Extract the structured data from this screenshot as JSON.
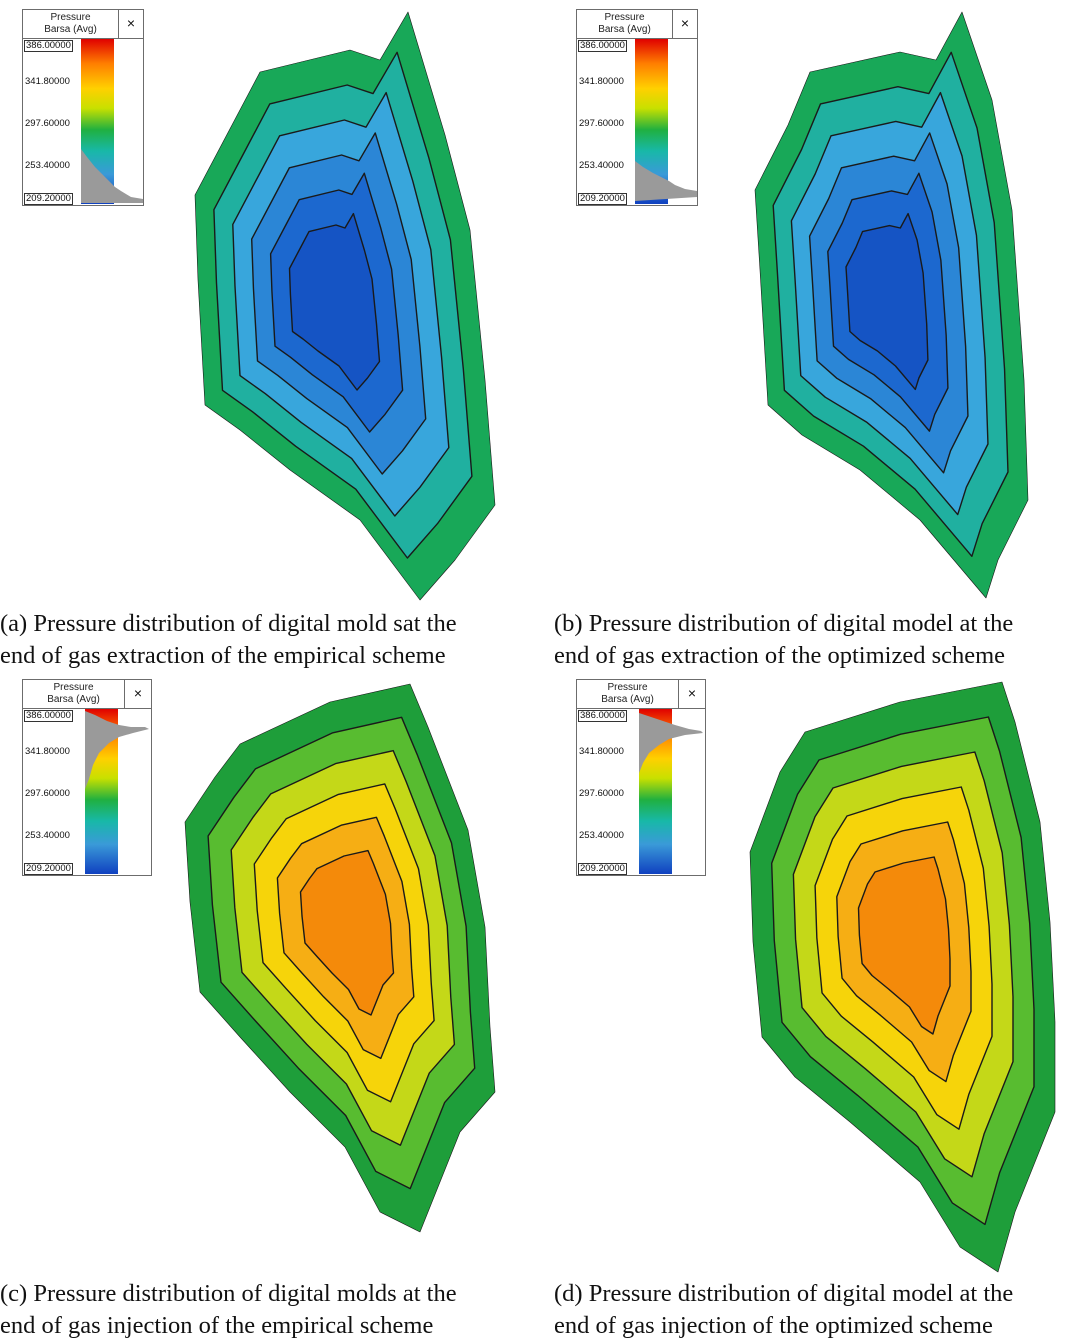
{
  "legend": {
    "title_line1": "Pressure",
    "title_line2": "Barsa (Avg)",
    "close_glyph": "×",
    "ticks": [
      "386.00000",
      "341.80000",
      "297.60000",
      "253.40000",
      "209.20000"
    ]
  },
  "panels": [
    {
      "id": "a",
      "caption_line1": "(a) Pressure distribution of digital mold sat the",
      "caption_line2": "end of gas extraction of the empirical scheme",
      "palette": "extraction"
    },
    {
      "id": "b",
      "caption_line1": "(b) Pressure distribution of digital model at the",
      "caption_line2": "end of gas extraction of the optimized scheme",
      "palette": "extraction"
    },
    {
      "id": "c",
      "caption_line1": "(c) Pressure distribution of digital molds at the",
      "caption_line2": "end of gas injection of the empirical scheme",
      "palette": "injection"
    },
    {
      "id": "d",
      "caption_line1": "(d) Pressure distribution of digital model at the",
      "caption_line2": "end of gas injection of the optimized scheme",
      "palette": "injection"
    }
  ],
  "colors": {
    "extraction": [
      "#18a858",
      "#20b0a0",
      "#38a6dc",
      "#2b86d6",
      "#1c68cf",
      "#1554c4"
    ],
    "injection": [
      "#1e9e3a",
      "#58bc30",
      "#c4d818",
      "#f6d40a",
      "#f6ae14",
      "#f48a0a"
    ],
    "contour": "#1a1a1a"
  }
}
